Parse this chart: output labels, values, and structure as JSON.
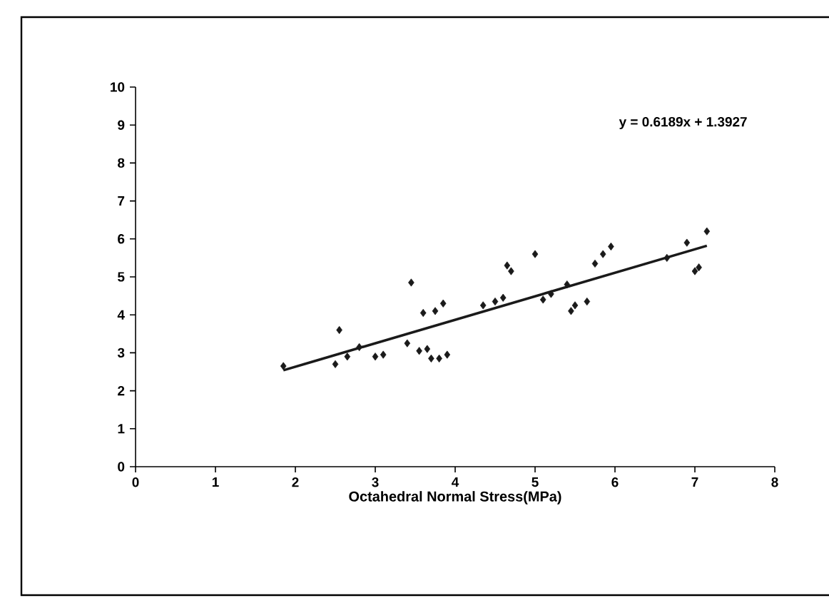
{
  "chart_data": {
    "type": "scatter",
    "xlabel": "Octahedral Normal Stress(MPa)",
    "xlim": [
      0,
      8
    ],
    "xticks": [
      0,
      1,
      2,
      3,
      4,
      5,
      6,
      7,
      8
    ],
    "ylim": [
      0,
      10
    ],
    "yticks": [
      0,
      1,
      2,
      3,
      4,
      5,
      6,
      7,
      8,
      9,
      10
    ],
    "grid": false,
    "annotations": [
      "y = 0.6189x + 1.3927"
    ],
    "x": [
      1.85,
      2.5,
      2.55,
      2.65,
      2.8,
      3.0,
      3.1,
      3.4,
      3.45,
      3.55,
      3.6,
      3.65,
      3.7,
      3.75,
      3.8,
      3.85,
      3.9,
      4.35,
      4.5,
      4.6,
      4.65,
      4.7,
      5.0,
      5.1,
      5.2,
      5.4,
      5.45,
      5.5,
      5.65,
      5.75,
      5.85,
      5.95,
      6.65,
      6.9,
      7.0,
      7.05,
      7.15
    ],
    "series": [
      {
        "marker": "diamond",
        "color": "#1a1a1a",
        "values": [
          2.65,
          2.7,
          3.6,
          2.9,
          3.15,
          2.9,
          2.95,
          3.25,
          4.85,
          3.05,
          4.05,
          3.1,
          2.85,
          4.1,
          2.85,
          4.3,
          2.95,
          4.25,
          4.35,
          4.45,
          5.3,
          5.15,
          5.6,
          4.4,
          4.55,
          4.8,
          4.1,
          4.25,
          4.35,
          5.35,
          5.6,
          5.8,
          5.5,
          5.9,
          5.15,
          5.25,
          6.2
        ]
      },
      {
        "type": "line",
        "color": "#1a1a1a",
        "x": [
          1.85,
          7.15
        ],
        "marker": "none",
        "values": [
          2.54,
          5.82
        ]
      }
    ]
  }
}
